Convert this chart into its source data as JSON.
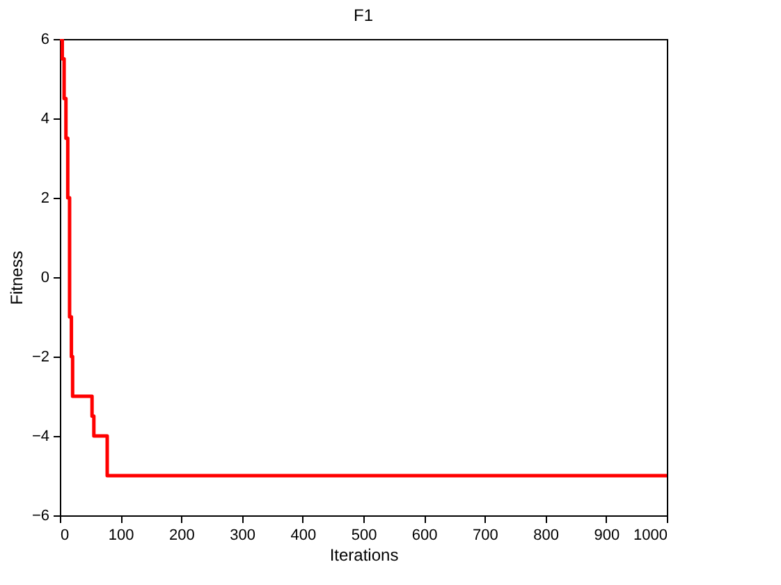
{
  "chart_data": {
    "type": "step",
    "title": "F1",
    "xlabel": "Iterations",
    "ylabel": "Fitness",
    "series": [
      {
        "color": "#ff0000",
        "x": [
          0,
          4,
          7,
          10,
          13,
          16,
          19,
          21,
          50,
          53,
          56,
          75,
          78,
          1000
        ],
        "values": [
          6,
          5.5,
          4.5,
          3.5,
          2,
          -1,
          -2,
          -3,
          -3,
          -3.5,
          -4,
          -4,
          -5,
          -5
        ]
      }
    ],
    "xlim": [
      0,
      1000
    ],
    "xticks": [
      0,
      100,
      200,
      300,
      400,
      500,
      600,
      700,
      800,
      900,
      1000
    ],
    "ylim": [
      -6,
      6
    ],
    "yticks": [
      -6,
      -4,
      -2,
      0,
      2,
      4,
      6
    ],
    "grid": false,
    "line_style": "solid"
  }
}
